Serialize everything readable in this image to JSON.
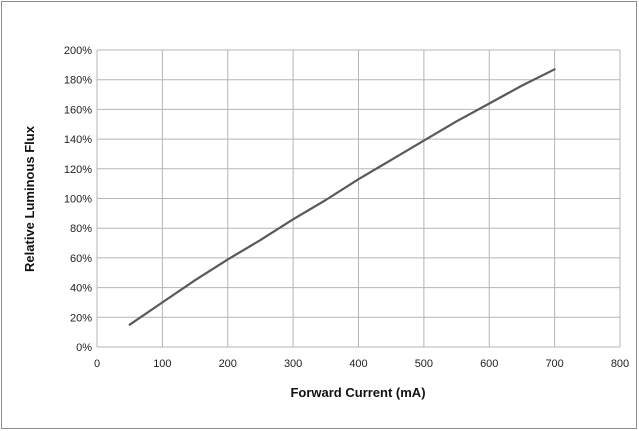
{
  "chart_data": {
    "type": "line",
    "xlabel": "Forward Current (mA)",
    "ylabel": "Relative Luminous Flux",
    "xlim": [
      0,
      800
    ],
    "ylim": [
      0,
      200
    ],
    "x_ticks": [
      "0",
      "100",
      "200",
      "300",
      "400",
      "500",
      "600",
      "700",
      "800"
    ],
    "y_ticks": [
      "0%",
      "20%",
      "40%",
      "60%",
      "80%",
      "100%",
      "120%",
      "140%",
      "160%",
      "180%",
      "200%"
    ],
    "grid": true,
    "legend": "none",
    "series": [
      {
        "x": [
          50,
          100,
          150,
          200,
          250,
          300,
          350,
          400,
          450,
          500,
          550,
          600,
          650,
          700
        ],
        "y": [
          15,
          30,
          45,
          59,
          72,
          86,
          99,
          113,
          126,
          139,
          152,
          164,
          176,
          187
        ],
        "color": "#595959"
      }
    ]
  }
}
